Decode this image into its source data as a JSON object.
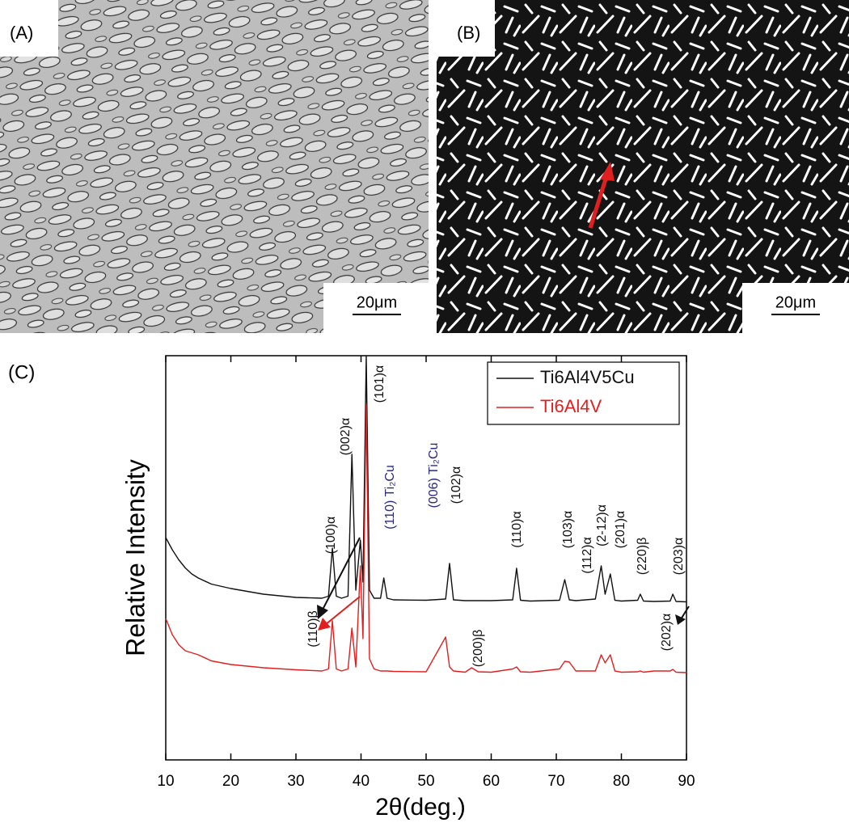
{
  "panels": {
    "a_label": "(A)",
    "b_label": "(B)",
    "c_label": "(C)",
    "a_scale": "20μm",
    "b_scale": "20μm"
  },
  "chart_data": {
    "type": "line",
    "xlabel": "2θ(deg.)",
    "ylabel": "Relative Intensity",
    "xlim": [
      10,
      90
    ],
    "xticks": [
      10,
      20,
      30,
      40,
      50,
      60,
      70,
      80,
      90
    ],
    "ylim": [
      0,
      100
    ],
    "legend": "upper right",
    "x": [
      10,
      11,
      12,
      13,
      14,
      15,
      17,
      20,
      25,
      30,
      34,
      35,
      35.6,
      36.2,
      37,
      38,
      38.6,
      39.2,
      39.9,
      40.3,
      40.8,
      41.3,
      42,
      43,
      43.5,
      44,
      45,
      50,
      53,
      53.6,
      54.2,
      56,
      57,
      58,
      60,
      63.3,
      63.9,
      64.5,
      66,
      70.5,
      71.3,
      72,
      73,
      76,
      76.9,
      77.5,
      78.3,
      79,
      80,
      82.5,
      82.9,
      83.4,
      85,
      87.5,
      87.9,
      88.4,
      90
    ],
    "series": [
      {
        "name": "Ti6Al4V5Cu",
        "color": "#111111",
        "values": [
          55,
          52,
          49.5,
          47.5,
          46,
          45,
          43.5,
          42.4,
          41,
          40.2,
          40,
          40.5,
          52.4,
          40.5,
          40,
          40.5,
          75.6,
          42,
          54.4,
          44,
          100,
          42,
          40,
          40,
          45,
          40,
          39.6,
          39.5,
          39.8,
          48.6,
          39.6,
          39.4,
          39.4,
          39.4,
          39.4,
          39.6,
          47.4,
          39.5,
          39.3,
          39.5,
          44.6,
          39.6,
          39.4,
          39.8,
          48,
          41,
          46,
          39.5,
          39.3,
          39.5,
          41,
          39.3,
          39.2,
          39.3,
          41,
          39.2,
          39.1
        ]
      },
      {
        "name": "Ti6Al4V",
        "color": "#e02020",
        "values": [
          35,
          31,
          28.5,
          27,
          26.5,
          26,
          24.5,
          23.6,
          22.8,
          22.3,
          22,
          22.5,
          34.4,
          22.5,
          22,
          22.5,
          32.6,
          23,
          48,
          30,
          88,
          25,
          22.5,
          22,
          22,
          22,
          21.9,
          21.8,
          30.4,
          23,
          22,
          21.7,
          22.8,
          21.8,
          21.7,
          22.5,
          23,
          21.8,
          21.7,
          22.5,
          24.4,
          24.2,
          22,
          22,
          26,
          24,
          26,
          22,
          21.7,
          21.8,
          22,
          21.7,
          22,
          22,
          22.4,
          21.7,
          21.6
        ]
      }
    ],
    "annotations": [
      {
        "text": "(100)α",
        "color": "#111111"
      },
      {
        "text": "(002)α",
        "color": "#111111"
      },
      {
        "text": "(101)α",
        "color": "#111111"
      },
      {
        "text": "(110) Ti₂Cu",
        "color": "#2a2a80"
      },
      {
        "text": "(006) Ti₂Cu",
        "color": "#2a2a80"
      },
      {
        "text": "(102)α",
        "color": "#111111"
      },
      {
        "text": "(110)α",
        "color": "#111111"
      },
      {
        "text": "(103)α",
        "color": "#111111"
      },
      {
        "text": "(112)α",
        "color": "#111111"
      },
      {
        "text": "(2-12)α",
        "color": "#111111"
      },
      {
        "text": "(201)α",
        "color": "#111111"
      },
      {
        "text": "(220)β",
        "color": "#111111"
      },
      {
        "text": "(203)α",
        "color": "#111111"
      },
      {
        "text": "(110)β",
        "color": "#111111"
      },
      {
        "text": "(200)β",
        "color": "#111111"
      },
      {
        "text": "(202)α",
        "color": "#111111"
      }
    ]
  }
}
